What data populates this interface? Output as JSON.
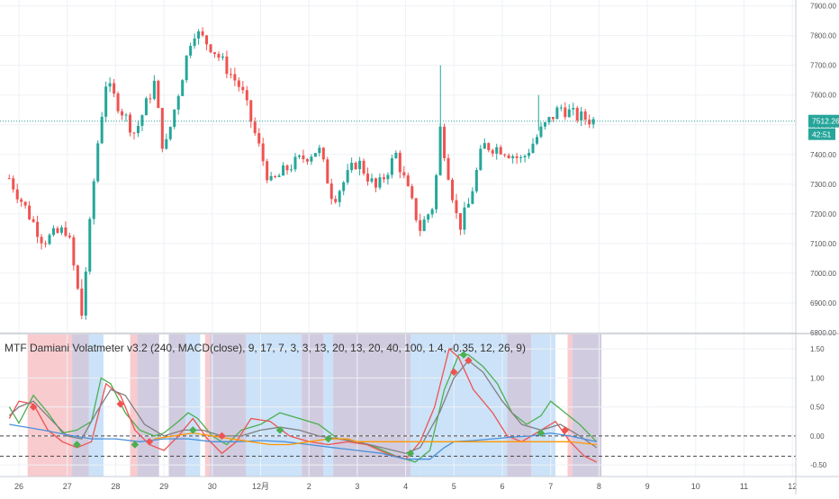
{
  "chart_data": [
    {
      "type": "candlestick",
      "title": "",
      "symbol_currency": "",
      "x_labels": [
        "26",
        "27",
        "28",
        "29",
        "30",
        "12月",
        "2",
        "3",
        "4",
        "5",
        "6",
        "7",
        "8",
        "9",
        "10",
        "11",
        "12"
      ],
      "y_ticks": [
        "7900.00",
        "7800.00",
        "7700.00",
        "7600.00",
        "7500.00",
        "7400.00",
        "7300.00",
        "7200.00",
        "7100.00",
        "7000.00",
        "6900.00",
        "6800.00"
      ],
      "ylim": [
        6800,
        7920
      ],
      "last_price": "7512.26",
      "countdown": "42:51",
      "colors": {
        "up": "#26a69a",
        "down": "#ef5350",
        "last_price_line": "#26a69a"
      },
      "key_points": [
        {
          "day": 25.8,
          "price": 7320
        },
        {
          "day": 26.5,
          "price": 7110
        },
        {
          "day": 27.0,
          "price": 7150
        },
        {
          "day": 27.3,
          "price": 6860
        },
        {
          "day": 27.6,
          "price": 7400
        },
        {
          "day": 27.8,
          "price": 7640
        },
        {
          "day": 28.4,
          "price": 7470
        },
        {
          "day": 28.8,
          "price": 7640
        },
        {
          "day": 29.0,
          "price": 7400
        },
        {
          "day": 29.4,
          "price": 7680
        },
        {
          "day": 29.6,
          "price": 7820
        },
        {
          "day": 30.0,
          "price": 7760
        },
        {
          "day": 30.6,
          "price": 7620
        },
        {
          "day": 31.2,
          "price": 7300
        },
        {
          "day": 31.6,
          "price": 7360
        },
        {
          "day": 32.2,
          "price": 7420
        },
        {
          "day": 32.5,
          "price": 7250
        },
        {
          "day": 33.0,
          "price": 7380
        },
        {
          "day": 33.4,
          "price": 7280
        },
        {
          "day": 33.8,
          "price": 7400
        },
        {
          "day": 34.0,
          "price": 7300
        },
        {
          "day": 34.3,
          "price": 7150
        },
        {
          "day": 34.6,
          "price": 7240
        },
        {
          "day": 34.7,
          "price": 7500
        },
        {
          "day": 35.1,
          "price": 7150
        },
        {
          "day": 35.3,
          "price": 7230
        },
        {
          "day": 35.6,
          "price": 7430
        },
        {
          "day": 36.0,
          "price": 7420
        },
        {
          "day": 36.4,
          "price": 7380
        },
        {
          "day": 36.8,
          "price": 7480
        },
        {
          "day": 37.2,
          "price": 7560
        },
        {
          "day": 37.5,
          "price": 7530
        },
        {
          "day": 37.95,
          "price": 7512
        }
      ]
    },
    {
      "type": "line",
      "title": "MTF Damiani Volatmeter v3.2 (240, MACD(close), 9, 17, 7, 3, 3, 13, 20, 13, 20, 40, 100, 1.4, -0.35, 12, 26, 9)",
      "y_ticks": [
        "1.50",
        "1.00",
        "0.50",
        "0.00",
        "-0.50"
      ],
      "ylim": [
        -0.7,
        1.75
      ],
      "threshold_levels": [
        0.0,
        -0.35
      ],
      "background_bands": [
        {
          "from": 26.18,
          "to": 27.1,
          "color": "#f8c8cc"
        },
        {
          "from": 27.1,
          "to": 27.45,
          "color": "#cfc8dd"
        },
        {
          "from": 27.45,
          "to": 27.75,
          "color": "#c8e0f8"
        },
        {
          "from": 28.3,
          "to": 28.45,
          "color": "#f8c8cc"
        },
        {
          "from": 28.45,
          "to": 28.9,
          "color": "#cfc8dd"
        },
        {
          "from": 29.1,
          "to": 29.45,
          "color": "#cfc8dd"
        },
        {
          "from": 29.45,
          "to": 29.75,
          "color": "#c8e0f8"
        },
        {
          "from": 29.85,
          "to": 29.95,
          "color": "#f8c8cc"
        },
        {
          "from": 29.95,
          "to": 30.7,
          "color": "#cfc8dd"
        },
        {
          "from": 30.7,
          "to": 31.85,
          "color": "#c8e0f8"
        },
        {
          "from": 31.85,
          "to": 32.3,
          "color": "#cfc8dd"
        },
        {
          "from": 32.3,
          "to": 32.5,
          "color": "#c8e0f8"
        },
        {
          "from": 32.5,
          "to": 34.1,
          "color": "#cfc8dd"
        },
        {
          "from": 34.1,
          "to": 34.3,
          "color": "#c8e0f8"
        },
        {
          "from": 34.3,
          "to": 36.1,
          "color": "#c8e0f8"
        },
        {
          "from": 36.1,
          "to": 36.6,
          "color": "#cfc8dd"
        },
        {
          "from": 36.6,
          "to": 37.1,
          "color": "#c8e0f8"
        },
        {
          "from": 37.35,
          "to": 37.45,
          "color": "#f8c8cc"
        },
        {
          "from": 37.45,
          "to": 38.05,
          "color": "#cfc8dd"
        }
      ],
      "series": [
        {
          "color": "#4caf50",
          "points": [
            [
              25.8,
              0.5
            ],
            [
              26.0,
              0.22
            ],
            [
              26.3,
              0.7
            ],
            [
              26.6,
              0.4
            ],
            [
              26.9,
              0.05
            ],
            [
              27.2,
              0.1
            ],
            [
              27.5,
              0.25
            ],
            [
              27.7,
              1.0
            ],
            [
              27.9,
              0.9
            ],
            [
              28.2,
              0.4
            ],
            [
              28.5,
              0.1
            ],
            [
              28.8,
              0.0
            ],
            [
              29.0,
              0.05
            ],
            [
              29.3,
              0.25
            ],
            [
              29.5,
              0.4
            ],
            [
              29.7,
              0.3
            ],
            [
              30.0,
              0.0
            ],
            [
              30.3,
              -0.15
            ],
            [
              30.6,
              0.1
            ],
            [
              31.0,
              0.2
            ],
            [
              31.4,
              0.4
            ],
            [
              31.8,
              0.3
            ],
            [
              32.2,
              0.2
            ],
            [
              32.6,
              -0.05
            ],
            [
              33.0,
              -0.1
            ],
            [
              33.4,
              -0.2
            ],
            [
              33.8,
              -0.35
            ],
            [
              34.2,
              -0.45
            ],
            [
              34.5,
              -0.25
            ],
            [
              34.8,
              0.8
            ],
            [
              35.1,
              1.4
            ],
            [
              35.3,
              1.4
            ],
            [
              35.6,
              1.2
            ],
            [
              35.9,
              0.9
            ],
            [
              36.2,
              0.4
            ],
            [
              36.5,
              0.2
            ],
            [
              36.8,
              0.35
            ],
            [
              37.0,
              0.6
            ],
            [
              37.3,
              0.4
            ],
            [
              37.6,
              0.2
            ],
            [
              37.95,
              -0.1
            ]
          ]
        },
        {
          "color": "#ef5350",
          "points": [
            [
              25.8,
              0.3
            ],
            [
              26.0,
              0.6
            ],
            [
              26.3,
              0.55
            ],
            [
              26.6,
              0.1
            ],
            [
              26.9,
              -0.1
            ],
            [
              27.2,
              -0.2
            ],
            [
              27.5,
              -0.1
            ],
            [
              27.8,
              0.9
            ],
            [
              28.1,
              0.7
            ],
            [
              28.4,
              0.1
            ],
            [
              28.7,
              -0.15
            ],
            [
              29.0,
              -0.25
            ],
            [
              29.3,
              0.0
            ],
            [
              29.6,
              0.3
            ],
            [
              29.9,
              -0.05
            ],
            [
              30.2,
              -0.3
            ],
            [
              30.5,
              -0.1
            ],
            [
              30.8,
              0.3
            ],
            [
              31.2,
              0.25
            ],
            [
              31.6,
              0.0
            ],
            [
              32.0,
              -0.1
            ],
            [
              32.4,
              -0.15
            ],
            [
              32.8,
              -0.1
            ],
            [
              33.2,
              -0.15
            ],
            [
              33.6,
              -0.3
            ],
            [
              34.0,
              -0.4
            ],
            [
              34.3,
              -0.1
            ],
            [
              34.6,
              0.5
            ],
            [
              34.9,
              1.5
            ],
            [
              35.1,
              1.35
            ],
            [
              35.4,
              0.8
            ],
            [
              35.8,
              0.4
            ],
            [
              36.1,
              0.0
            ],
            [
              36.4,
              -0.1
            ],
            [
              36.8,
              0.1
            ],
            [
              37.1,
              0.25
            ],
            [
              37.4,
              -0.1
            ],
            [
              37.7,
              -0.35
            ],
            [
              37.95,
              -0.45
            ]
          ]
        },
        {
          "color": "#808080",
          "points": [
            [
              25.8,
              0.35
            ],
            [
              26.0,
              0.5
            ],
            [
              26.3,
              0.6
            ],
            [
              26.7,
              0.25
            ],
            [
              27.0,
              0.0
            ],
            [
              27.3,
              -0.05
            ],
            [
              27.6,
              0.4
            ],
            [
              27.9,
              0.8
            ],
            [
              28.2,
              0.7
            ],
            [
              28.6,
              0.2
            ],
            [
              29.0,
              0.0
            ],
            [
              29.4,
              0.1
            ],
            [
              29.8,
              0.1
            ],
            [
              30.2,
              0.0
            ],
            [
              30.6,
              0.0
            ],
            [
              31.0,
              0.1
            ],
            [
              31.4,
              0.15
            ],
            [
              31.8,
              0.1
            ],
            [
              32.2,
              0.0
            ],
            [
              32.6,
              -0.05
            ],
            [
              33.0,
              -0.1
            ],
            [
              33.5,
              -0.2
            ],
            [
              34.0,
              -0.3
            ],
            [
              34.3,
              -0.2
            ],
            [
              34.7,
              0.4
            ],
            [
              35.0,
              1.0
            ],
            [
              35.3,
              1.3
            ],
            [
              35.6,
              1.1
            ],
            [
              36.0,
              0.6
            ],
            [
              36.4,
              0.2
            ],
            [
              36.8,
              0.1
            ],
            [
              37.2,
              0.2
            ],
            [
              37.6,
              0.0
            ],
            [
              37.95,
              -0.2
            ]
          ]
        },
        {
          "color": "#4a90d9",
          "points": [
            [
              25.8,
              0.2
            ],
            [
              26.5,
              0.1
            ],
            [
              27.0,
              0.02
            ],
            [
              27.5,
              -0.05
            ],
            [
              28.0,
              -0.05
            ],
            [
              28.5,
              -0.1
            ],
            [
              29.0,
              -0.05
            ],
            [
              29.5,
              -0.05
            ],
            [
              30.0,
              -0.1
            ],
            [
              30.5,
              -0.1
            ],
            [
              31.0,
              -0.08
            ],
            [
              31.5,
              -0.1
            ],
            [
              32.0,
              -0.15
            ],
            [
              32.5,
              -0.2
            ],
            [
              33.0,
              -0.25
            ],
            [
              33.5,
              -0.3
            ],
            [
              34.0,
              -0.4
            ],
            [
              34.5,
              -0.4
            ],
            [
              34.8,
              -0.2
            ],
            [
              35.0,
              -0.1
            ],
            [
              35.4,
              -0.08
            ],
            [
              35.8,
              -0.05
            ],
            [
              36.2,
              -0.02
            ],
            [
              36.6,
              0.0
            ],
            [
              37.0,
              0.05
            ],
            [
              37.4,
              0.0
            ],
            [
              37.95,
              -0.1
            ]
          ]
        },
        {
          "color": "#ff9800",
          "points": [
            [
              28.8,
              -0.05
            ],
            [
              29.2,
              0.0
            ],
            [
              29.6,
              0.05
            ],
            [
              30.0,
              0.0
            ],
            [
              30.4,
              -0.05
            ],
            [
              30.8,
              -0.1
            ],
            [
              31.2,
              -0.15
            ],
            [
              31.6,
              -0.15
            ],
            [
              32.0,
              -0.1
            ],
            [
              32.4,
              -0.05
            ],
            [
              32.8,
              -0.05
            ],
            [
              33.0,
              -0.1
            ],
            [
              37.4,
              -0.1
            ],
            [
              37.95,
              -0.15
            ]
          ]
        }
      ],
      "markers": [
        {
          "day": 26.3,
          "value": 0.5,
          "color": "#ef5350"
        },
        {
          "day": 28.1,
          "value": 0.55,
          "color": "#ef5350"
        },
        {
          "day": 28.7,
          "value": -0.1,
          "color": "#ef5350"
        },
        {
          "day": 30.2,
          "value": 0.0,
          "color": "#ef5350"
        },
        {
          "day": 27.2,
          "value": -0.15,
          "color": "#4caf50"
        },
        {
          "day": 28.4,
          "value": -0.15,
          "color": "#4caf50"
        },
        {
          "day": 29.6,
          "value": 0.1,
          "color": "#4caf50"
        },
        {
          "day": 31.4,
          "value": 0.1,
          "color": "#4caf50"
        },
        {
          "day": 32.4,
          "value": -0.05,
          "color": "#4caf50"
        },
        {
          "day": 34.1,
          "value": -0.3,
          "color": "#4caf50"
        },
        {
          "day": 35.0,
          "value": 1.1,
          "color": "#ef5350"
        },
        {
          "day": 35.3,
          "value": 1.3,
          "color": "#ef5350"
        },
        {
          "day": 35.2,
          "value": 1.4,
          "color": "#4caf50"
        },
        {
          "day": 36.8,
          "value": 0.05,
          "color": "#4caf50"
        },
        {
          "day": 37.3,
          "value": 0.1,
          "color": "#ef5350"
        }
      ]
    }
  ]
}
